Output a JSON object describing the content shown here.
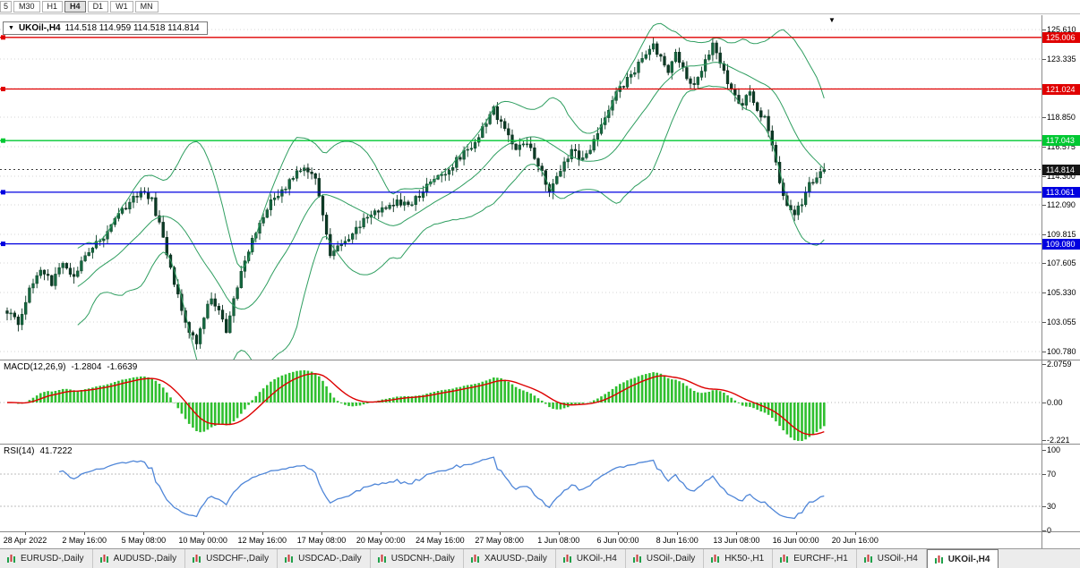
{
  "toolbar": {
    "timeframes": [
      {
        "label": "5",
        "name": "m5",
        "active": false
      },
      {
        "label": "M30",
        "name": "m30",
        "active": false
      },
      {
        "label": "H1",
        "name": "h1",
        "active": false
      },
      {
        "label": "H4",
        "name": "h4",
        "active": true
      },
      {
        "label": "D1",
        "name": "d1",
        "active": false
      },
      {
        "label": "W1",
        "name": "w1",
        "active": false
      },
      {
        "label": "MN",
        "name": "mn",
        "active": false
      }
    ]
  },
  "main_chart": {
    "title_symbol": "UKOil-,H4",
    "title_ohlc": "114.518 114.959 114.518 114.814",
    "dropdown_icon": "▼",
    "shift_icon": "▼",
    "axis_labels": [
      {
        "price": 125.61,
        "text": "125.610"
      },
      {
        "price": 123.335,
        "text": "123.335"
      },
      {
        "price": 121.06,
        "text": "121.060"
      },
      {
        "price": 118.85,
        "text": "118.850"
      },
      {
        "price": 116.575,
        "text": "116.575"
      },
      {
        "price": 114.3,
        "text": "114.300"
      },
      {
        "price": 112.09,
        "text": "112.090"
      },
      {
        "price": 109.815,
        "text": "109.815"
      },
      {
        "price": 107.605,
        "text": "107.605"
      },
      {
        "price": 105.33,
        "text": "105.330"
      },
      {
        "price": 103.055,
        "text": "103.055"
      },
      {
        "price": 100.78,
        "text": "100.780"
      }
    ],
    "levels": [
      {
        "price": 125.006,
        "text": "125.006",
        "color": "#e00000"
      },
      {
        "price": 121.024,
        "text": "121.024",
        "color": "#e00000"
      },
      {
        "price": 117.043,
        "text": "117.043",
        "color": "#00c832"
      },
      {
        "price": 113.061,
        "text": "113.061",
        "color": "#0000e0"
      },
      {
        "price": 109.08,
        "text": "109.080",
        "color": "#0000e0"
      }
    ],
    "current": {
      "price": 114.814,
      "text": "114.814"
    }
  },
  "macd_panel": {
    "label": "MACD(12,26,9)",
    "value_main": "-1.2804",
    "value_signal": "-1.6639",
    "axis": [
      {
        "v": 2.0759,
        "text": "2.0759"
      },
      {
        "v": 0,
        "text": "0.00"
      },
      {
        "v": -2.2212,
        "text": "-2.221"
      }
    ]
  },
  "rsi_panel": {
    "label": "RSI(14)",
    "value": "41.7222",
    "axis": [
      {
        "v": 100,
        "text": "100"
      },
      {
        "v": 70,
        "text": "70"
      },
      {
        "v": 30,
        "text": "30"
      },
      {
        "v": 0,
        "text": "0"
      }
    ],
    "level_lines": [
      70,
      30
    ]
  },
  "time_axis": {
    "labels": [
      "28 Apr 2022",
      "2 May 16:00",
      "5 May 08:00",
      "10 May 00:00",
      "12 May 16:00",
      "17 May 08:00",
      "20 May 00:00",
      "24 May 16:00",
      "27 May 08:00",
      "1 Jun 08:00",
      "6 Jun 00:00",
      "8 Jun 16:00",
      "13 Jun 08:00",
      "16 Jun 00:00",
      "20 Jun 16:00"
    ]
  },
  "tabs": {
    "items": [
      {
        "label": "EURUSD-,Daily",
        "active": false
      },
      {
        "label": "AUDUSD-,Daily",
        "active": false
      },
      {
        "label": "USDCHF-,Daily",
        "active": false
      },
      {
        "label": "USDCAD-,Daily",
        "active": false
      },
      {
        "label": "USDCNH-,Daily",
        "active": false
      },
      {
        "label": "XAUUSD-,Daily",
        "active": false
      },
      {
        "label": "UKOil-,H4",
        "active": false
      },
      {
        "label": "USOil-,Daily",
        "active": false
      },
      {
        "label": "HK50-,H1",
        "active": false
      },
      {
        "label": "EURCHF-,H1",
        "active": false
      },
      {
        "label": "USOil-,H4",
        "active": false
      },
      {
        "label": "UKOil-,H4",
        "active": true
      }
    ]
  },
  "colors": {
    "bull_fill": "#156840",
    "bull_stroke": "#0a4226",
    "bear_fill": "#0b3a25",
    "bear_stroke": "#062a19",
    "bollinger": "#2f9e60",
    "grid": "#d6d6d6",
    "current_line": "#3a3a3a",
    "current_label_bg": "#151515",
    "macd_hist": "#2fbf2f",
    "macd_signal": "#dd0000",
    "rsi_line": "#4f86d8",
    "rsi_levels": "#bcbcbc",
    "tab_icon_green": "#1fa04a",
    "tab_icon_red": "#cc3b3b"
  },
  "chart_data": {
    "type": "candlestick",
    "symbol": "UKOil-",
    "timeframe": "H4",
    "title": "UKOil-,H4",
    "current_ohlc": {
      "open": 114.518,
      "high": 114.959,
      "low": 114.518,
      "close": 114.814
    },
    "candles_count": 221,
    "visible_price_range": [
      100.78,
      125.61
    ],
    "horizontal_levels": [
      125.006,
      121.024,
      117.043,
      113.061,
      109.08
    ],
    "price_anchors": [
      [
        0,
        103.8
      ],
      [
        3,
        102.9
      ],
      [
        6,
        105.6
      ],
      [
        9,
        107.3
      ],
      [
        12,
        106.1
      ],
      [
        15,
        107.6
      ],
      [
        18,
        106.6
      ],
      [
        21,
        108.1
      ],
      [
        24,
        109.2
      ],
      [
        27,
        109.9
      ],
      [
        30,
        111.2
      ],
      [
        33,
        112.4
      ],
      [
        36,
        113.2
      ],
      [
        39,
        112.4
      ],
      [
        42,
        109.6
      ],
      [
        45,
        106.1
      ],
      [
        48,
        103.1
      ],
      [
        51,
        101.2
      ],
      [
        53,
        103.6
      ],
      [
        55,
        105.1
      ],
      [
        57,
        103.9
      ],
      [
        59,
        102.3
      ],
      [
        62,
        105.9
      ],
      [
        65,
        108.6
      ],
      [
        68,
        110.6
      ],
      [
        71,
        112.4
      ],
      [
        74,
        113.1
      ],
      [
        77,
        114.4
      ],
      [
        80,
        115.1
      ],
      [
        83,
        114.3
      ],
      [
        85,
        111.1
      ],
      [
        87,
        108.3
      ],
      [
        90,
        108.9
      ],
      [
        93,
        110.1
      ],
      [
        96,
        110.9
      ],
      [
        99,
        111.4
      ],
      [
        102,
        112.0
      ],
      [
        105,
        112.4
      ],
      [
        108,
        112.0
      ],
      [
        111,
        112.9
      ],
      [
        114,
        113.7
      ],
      [
        117,
        114.4
      ],
      [
        120,
        115.2
      ],
      [
        123,
        116.1
      ],
      [
        126,
        117.0
      ],
      [
        129,
        118.4
      ],
      [
        131,
        119.4
      ],
      [
        134,
        117.9
      ],
      [
        137,
        116.3
      ],
      [
        140,
        116.9
      ],
      [
        143,
        115.1
      ],
      [
        146,
        113.3
      ],
      [
        149,
        114.9
      ],
      [
        152,
        116.3
      ],
      [
        155,
        115.6
      ],
      [
        158,
        116.9
      ],
      [
        160,
        118.1
      ],
      [
        163,
        120.3
      ],
      [
        166,
        121.4
      ],
      [
        169,
        122.3
      ],
      [
        172,
        123.9
      ],
      [
        174,
        124.5
      ],
      [
        176,
        123.3
      ],
      [
        178,
        122.4
      ],
      [
        180,
        123.6
      ],
      [
        182,
        122.5
      ],
      [
        184,
        121.3
      ],
      [
        186,
        121.9
      ],
      [
        188,
        123.3
      ],
      [
        190,
        124.4
      ],
      [
        192,
        123.1
      ],
      [
        194,
        121.6
      ],
      [
        196,
        120.3
      ],
      [
        198,
        119.9
      ],
      [
        200,
        120.8
      ],
      [
        202,
        119.3
      ],
      [
        204,
        118.9
      ],
      [
        206,
        116.6
      ],
      [
        208,
        113.9
      ],
      [
        210,
        112.1
      ],
      [
        212,
        111.4
      ],
      [
        214,
        112.3
      ],
      [
        216,
        113.6
      ],
      [
        218,
        114.3
      ],
      [
        220,
        114.81
      ]
    ],
    "indicators": {
      "bollinger": {
        "period": 20,
        "deviation": 2
      },
      "macd": {
        "fast": 12,
        "slow": 26,
        "signal": 9,
        "current_main": -1.2804,
        "current_signal": -1.6639
      },
      "rsi": {
        "period": 14,
        "current": 41.7222
      }
    }
  }
}
